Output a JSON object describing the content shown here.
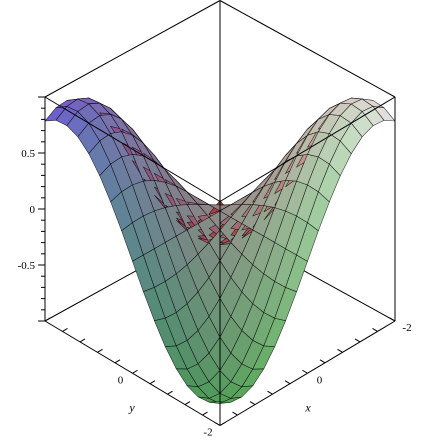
{
  "chart_data": {
    "type": "surface3d",
    "title": "",
    "xlabel": "x",
    "ylabel": "y",
    "zlabel": "",
    "x_range": [
      -2,
      2
    ],
    "y_range": [
      -2,
      2
    ],
    "z_range": [
      -1,
      1
    ],
    "x_tick_labels": [
      {
        "label": "-2",
        "value": -2
      },
      {
        "label": "0",
        "value": 0
      }
    ],
    "y_tick_labels": [
      {
        "label": "-2",
        "value": -2
      },
      {
        "label": "0",
        "value": 0
      }
    ],
    "z_tick_labels": [
      {
        "label": "0.5",
        "value": 0.5
      },
      {
        "label": "0",
        "value": 0
      },
      {
        "label": "-0.5",
        "value": -0.5
      }
    ],
    "grid_resolution": [
      17,
      17
    ],
    "surface_shape": "peak at (2,2) near 1, saddle at center near -0.4, low corners near -0.85",
    "corner_colors": {
      "x=2,y=2": "#6b5cd6",
      "x=-2,y=-2": "#e8e8e8",
      "x=-2,y=2": "#d94a4a",
      "x=2,y=-2": "#5ad45a"
    },
    "mesh_color": "#000000",
    "frame": "boxed"
  }
}
